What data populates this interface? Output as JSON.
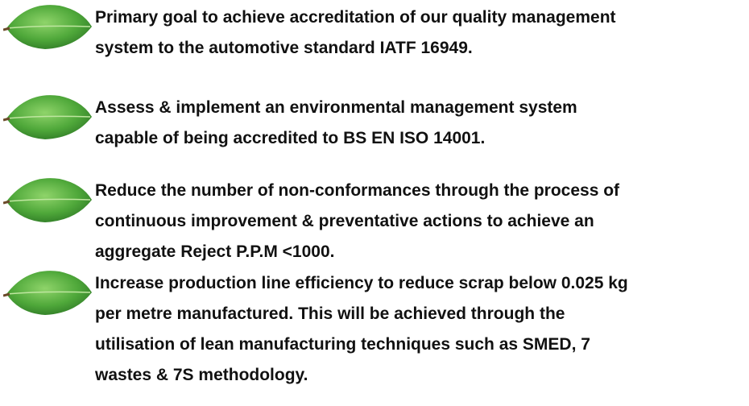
{
  "items": [
    {
      "lines": [
        "Primary goal to achieve accreditation of our quality management",
        "system to the automotive standard IATF 16949."
      ]
    },
    {
      "lines": [
        "Assess & implement an environmental management system",
        "capable of being accredited to BS EN ISO 14001."
      ]
    },
    {
      "lines": [
        "Reduce the number of non-conformances through the process of",
        "continuous improvement & preventative actions to achieve an",
        "aggregate Reject P.P.M <1000."
      ]
    },
    {
      "lines": [
        "Increase production line efficiency to reduce scrap below 0.025 kg",
        "per metre manufactured. This will be achieved through the",
        "utilisation of lean manufacturing techniques such as SMED, 7",
        "wastes & 7S methodology."
      ]
    }
  ]
}
